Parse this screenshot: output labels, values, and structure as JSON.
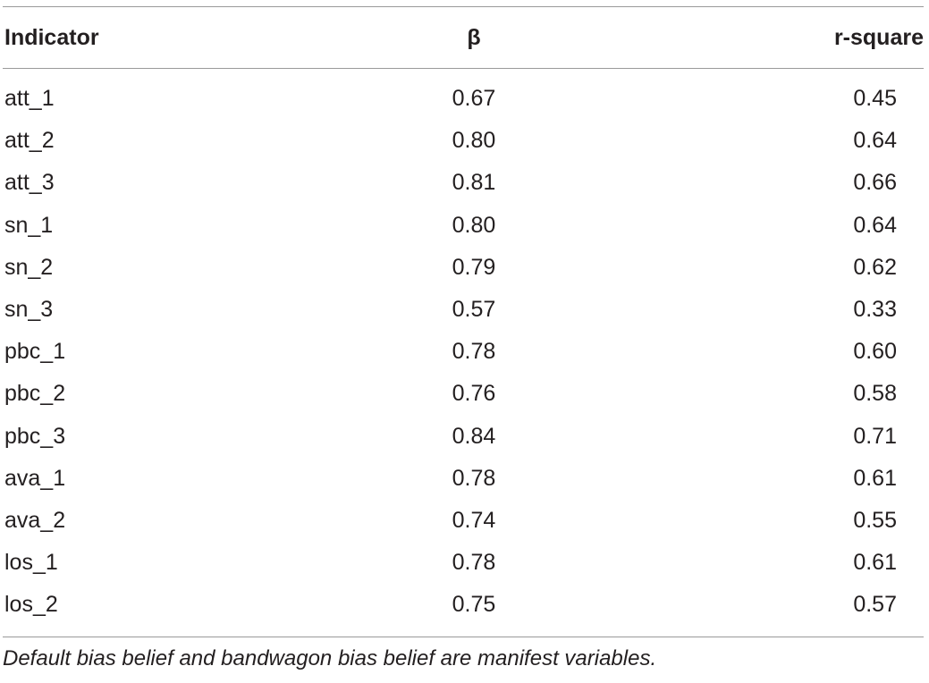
{
  "table": {
    "headers": [
      "Indicator",
      "β",
      "r-square"
    ],
    "rows": [
      [
        "att_1",
        "0.67",
        "0.45"
      ],
      [
        "att_2",
        "0.80",
        "0.64"
      ],
      [
        "att_3",
        "0.81",
        "0.66"
      ],
      [
        "sn_1",
        "0.80",
        "0.64"
      ],
      [
        "sn_2",
        "0.79",
        "0.62"
      ],
      [
        "sn_3",
        "0.57",
        "0.33"
      ],
      [
        "pbc_1",
        "0.78",
        "0.60"
      ],
      [
        "pbc_2",
        "0.76",
        "0.58"
      ],
      [
        "pbc_3",
        "0.84",
        "0.71"
      ],
      [
        "ava_1",
        "0.78",
        "0.61"
      ],
      [
        "ava_2",
        "0.74",
        "0.55"
      ],
      [
        "los_1",
        "0.78",
        "0.61"
      ],
      [
        "los_2",
        "0.75",
        "0.57"
      ]
    ],
    "footnote": "Default bias belief and bandwagon bias belief are manifest variables."
  }
}
